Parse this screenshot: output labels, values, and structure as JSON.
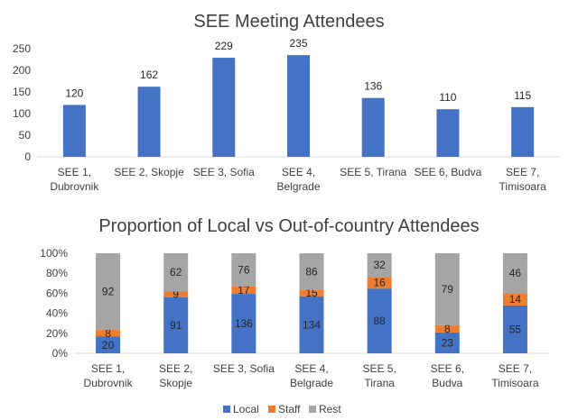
{
  "chart_data": [
    {
      "type": "bar",
      "title": "SEE Meeting Attendees",
      "categories": [
        [
          "SEE 1,",
          "Dubrovnik"
        ],
        [
          "SEE 2, Skopje"
        ],
        [
          "SEE 3, Sofia"
        ],
        [
          "SEE 4,",
          "Belgrade"
        ],
        [
          "SEE 5, Tirana"
        ],
        [
          "SEE 6, Budva"
        ],
        [
          "SEE 7,",
          "Timisoara"
        ]
      ],
      "values": [
        120,
        162,
        229,
        235,
        136,
        110,
        115
      ],
      "ylim": [
        0,
        250
      ],
      "yticks": [
        0,
        50,
        100,
        150,
        200,
        250
      ],
      "xlabel": "",
      "ylabel": "",
      "grid": false,
      "color": "#4472C4"
    },
    {
      "type": "bar",
      "stacked": "percent",
      "title": "Proportion of Local vs Out-of-country Attendees",
      "categories": [
        [
          "SEE 1,",
          "Dubrovnik"
        ],
        [
          "SEE 2,",
          "Skopje"
        ],
        [
          "SEE 3, Sofia"
        ],
        [
          "SEE 4,",
          "Belgrade"
        ],
        [
          "SEE 5,",
          "Tirana"
        ],
        [
          "SEE 6,",
          "Budva"
        ],
        [
          "SEE 7,",
          "Timisoara"
        ]
      ],
      "series": [
        {
          "name": "Local",
          "values": [
            20,
            91,
            136,
            134,
            88,
            23,
            55
          ],
          "color": "#4472C4"
        },
        {
          "name": "Staff",
          "values": [
            8,
            9,
            17,
            15,
            16,
            8,
            14
          ],
          "color": "#ED7D31"
        },
        {
          "name": "Rest",
          "values": [
            92,
            62,
            76,
            86,
            32,
            79,
            46
          ],
          "color": "#A5A5A5"
        }
      ],
      "ylim": [
        0,
        100
      ],
      "yticks": [
        "0%",
        "20%",
        "40%",
        "60%",
        "80%",
        "100%"
      ],
      "legend_position": "bottom",
      "grid": false
    }
  ]
}
